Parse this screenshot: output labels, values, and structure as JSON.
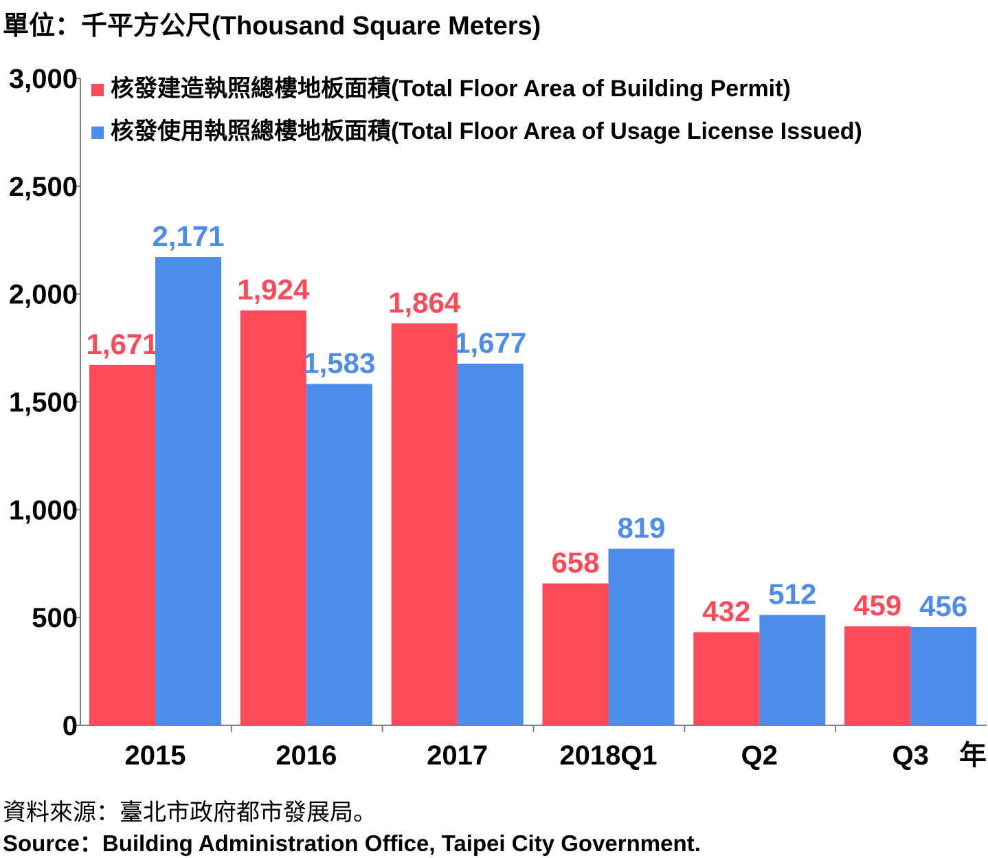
{
  "unit_label": "單位：千平方公尺(Thousand Square Meters)",
  "source_zh": "資料來源：臺北市政府都市發展局。",
  "source_en": "Source：Building Administration Office, Taipei City Government.",
  "colors": {
    "permit": "#ff4a5a",
    "usage": "#4d8ceb",
    "axis": "#808080"
  },
  "chart_data": {
    "type": "bar",
    "categories": [
      "2015",
      "2016",
      "2017",
      "2018Q1",
      "Q2",
      "Q3"
    ],
    "x_suffix": "年",
    "series": [
      {
        "name": "核發建造執照總樓地板面積(Total Floor Area of Building Permit)",
        "values": [
          1671,
          1924,
          1864,
          658,
          432,
          459
        ],
        "labels": [
          "1,671",
          "1,924",
          "1,864",
          "658",
          "432",
          "459"
        ]
      },
      {
        "name": "核發使用執照總樓地板面積(Total Floor Area of Usage License Issued)",
        "values": [
          2171,
          1583,
          1677,
          819,
          512,
          456
        ],
        "labels": [
          "2,171",
          "1,583",
          "1,677",
          "819",
          "512",
          "456"
        ]
      }
    ],
    "ylim": [
      0,
      3000
    ],
    "yticks": [
      0,
      500,
      1000,
      1500,
      2000,
      2500,
      3000
    ],
    "ytick_labels": [
      "0",
      "500",
      "1,000",
      "1,500",
      "2,000",
      "2,500",
      "3,000"
    ],
    "legend_position": "top",
    "grid": false
  }
}
